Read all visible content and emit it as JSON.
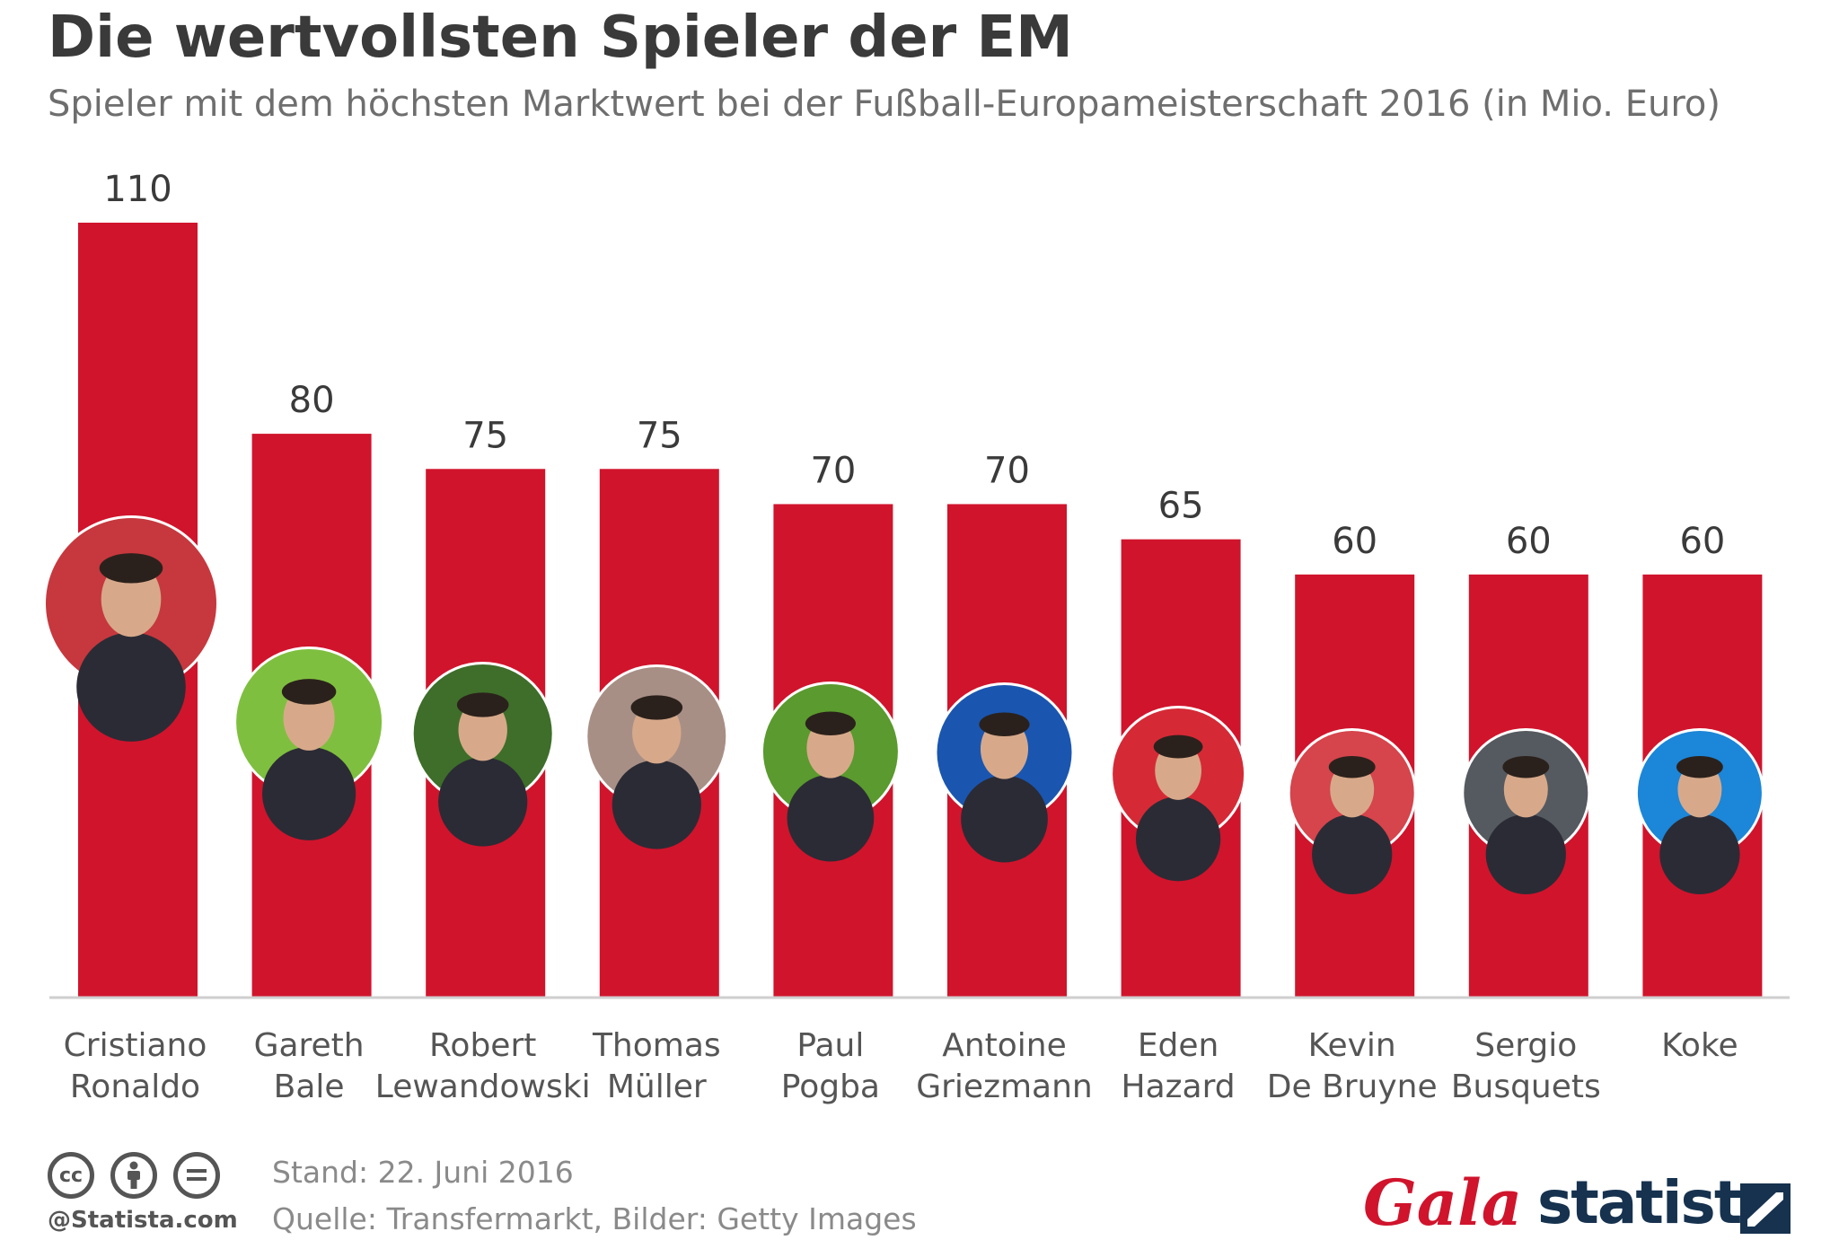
{
  "title": "Die wertvollsten Spieler der EM",
  "subtitle": "Spieler mit dem höchsten Marktwert bei der Fußball-Europameisterschaft 2016 (in Mio. Euro)",
  "chart_data": {
    "type": "bar",
    "title": "Die wertvollsten Spieler der EM",
    "subtitle": "Spieler mit dem höchsten Marktwert bei der Fußball-Europameisterschaft 2016 (in Mio. Euro)",
    "categories": [
      [
        "Cristiano",
        "Ronaldo"
      ],
      [
        "Gareth",
        "Bale"
      ],
      [
        "Robert",
        "Lewandowski"
      ],
      [
        "Thomas",
        "Müller"
      ],
      [
        "Paul",
        "Pogba"
      ],
      [
        "Antoine",
        "Griezmann"
      ],
      [
        "Eden",
        "Hazard"
      ],
      [
        "Kevin",
        "De Bruyne"
      ],
      [
        "Sergio",
        "Busquets"
      ],
      [
        "Koke"
      ]
    ],
    "values": [
      110,
      80,
      75,
      75,
      70,
      70,
      65,
      60,
      60,
      60
    ],
    "value_labels": [
      "110",
      "80",
      "75",
      "75",
      "70",
      "70",
      "65",
      "60",
      "60",
      "60"
    ],
    "ylim": [
      0,
      110
    ],
    "grid": false,
    "bar_color": "#d0142c",
    "avatar_colors": [
      "#c6383e",
      "#7fbf3f",
      "#3e6e2a",
      "#a88f86",
      "#5a9a2e",
      "#1a56b0",
      "#d52a36",
      "#d6444c",
      "#555a60",
      "#1c86d8"
    ]
  },
  "footer": {
    "stand": "Stand: 22. Juni 2016",
    "source": "Quelle: Transfermarkt, Bilder: Getty Images",
    "credit": "@Statista.com",
    "cc_icons": [
      "cc-icon",
      "by-icon",
      "nd-icon"
    ]
  },
  "logos": {
    "gala": "Gala",
    "statista": "statista"
  }
}
